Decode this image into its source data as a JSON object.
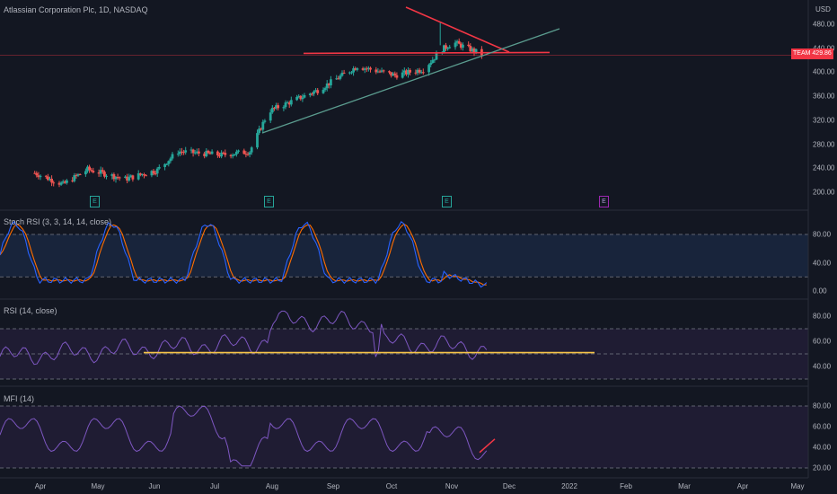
{
  "header": {
    "title": "Atlassian Corporation Plc, 1D, NASDAQ",
    "currency": "USD"
  },
  "price_tag": {
    "symbol": "TEAM",
    "value": "429.86"
  },
  "panes": {
    "price": {
      "y_ticks": [
        "480.00",
        "440.00",
        "400.00",
        "360.00",
        "320.00",
        "280.00",
        "240.00",
        "200.00"
      ],
      "earnings_badges": [
        "E",
        "E",
        "E",
        "E"
      ]
    },
    "stoch": {
      "label": "Stoch RSI (3, 3, 14, 14, close)",
      "y_ticks": [
        "80.00",
        "40.00",
        "0.00"
      ]
    },
    "rsi": {
      "label": "RSI (14, close)",
      "y_ticks": [
        "80.00",
        "60.00",
        "40.00"
      ]
    },
    "mfi": {
      "label": "MFI (14)",
      "y_ticks": [
        "80.00",
        "60.00",
        "40.00",
        "20.00"
      ]
    }
  },
  "x_axis": [
    "Apr",
    "May",
    "Jun",
    "Jul",
    "Aug",
    "Sep",
    "Oct",
    "Nov",
    "Dec",
    "2022",
    "Feb",
    "Mar",
    "Apr",
    "May"
  ],
  "colors": {
    "background": "#131722",
    "up": "#26a69a",
    "down": "#ef5350",
    "trend_red": "#f23645",
    "trend_teal": "#5b9c8f",
    "stoch_k": "#2962ff",
    "stoch_d": "#ff6d00",
    "osc_line": "#7e57c2",
    "rsi_level": "#f7c548"
  },
  "chart_data": {
    "type": "candlestick",
    "title": "Atlassian Corporation Plc, 1D, NASDAQ",
    "price_range": [
      190,
      490
    ],
    "price_anchors": [
      [
        "Mar 28",
        232
      ],
      [
        "Apr 12",
        213
      ],
      [
        "Apr 25",
        238
      ],
      [
        "May 15",
        222
      ],
      [
        "Jun 1",
        237
      ],
      [
        "Jun 12",
        268
      ],
      [
        "Jul 5",
        262
      ],
      [
        "Jul 20",
        268
      ],
      [
        "Jul 30",
        335
      ],
      [
        "Aug 25",
        370
      ],
      [
        "Sep 15",
        410
      ],
      [
        "Oct 5",
        395
      ],
      [
        "Oct 20",
        405
      ],
      [
        "Oct 30",
        438
      ],
      [
        "Nov 5",
        450
      ],
      [
        "Nov 20",
        430
      ]
    ],
    "annotations": [
      {
        "kind": "resistance",
        "price": 430
      },
      {
        "kind": "descending trendline",
        "from": [
          "Oct 28",
          485
        ],
        "to": [
          "Nov 28",
          430
        ]
      },
      {
        "kind": "ascending trendline",
        "from": [
          "Aug 1",
          300
        ],
        "to": [
          "Dec 15",
          468
        ]
      }
    ],
    "indicators": {
      "stoch_rsi": {
        "levels": [
          80,
          20
        ],
        "range": [
          0,
          100
        ]
      },
      "rsi": {
        "levels": [
          70,
          50,
          30
        ],
        "support": 51,
        "range": [
          30,
          90
        ]
      },
      "mfi": {
        "levels": [
          80,
          20
        ],
        "range": [
          10,
          90
        ]
      }
    }
  }
}
